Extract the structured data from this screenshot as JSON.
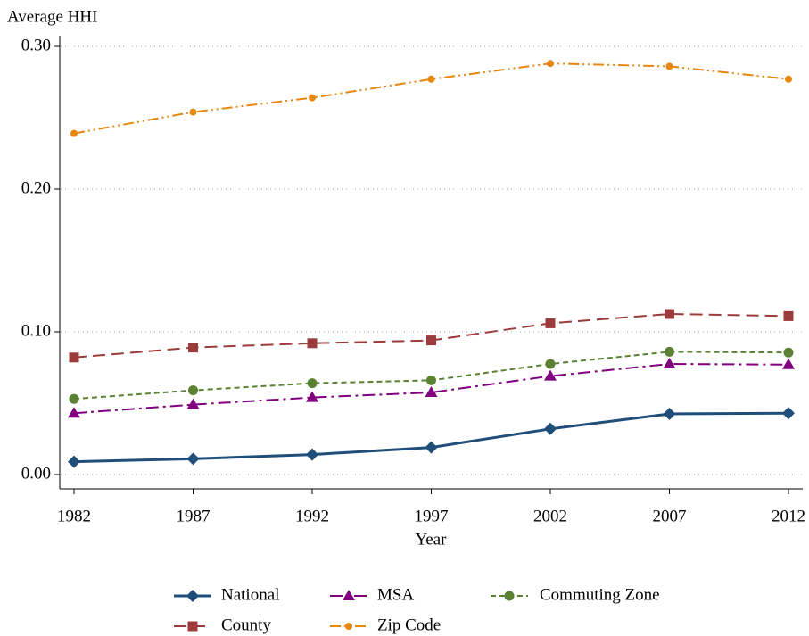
{
  "chart_data": {
    "type": "line",
    "y_label": "Average HHI",
    "x_label": "Year",
    "x": [
      1982,
      1987,
      1992,
      1997,
      2002,
      2007,
      2012
    ],
    "xlim": [
      1981.4,
      2012.6
    ],
    "xticks": [
      1982,
      1987,
      1992,
      1997,
      2002,
      2007,
      2012
    ],
    "ylim": [
      -0.01,
      0.3075
    ],
    "yticks": [
      {
        "value": 0,
        "label": "0.00"
      },
      {
        "value": 0.1,
        "label": "0.10"
      },
      {
        "value": 0.2,
        "label": "0.20"
      },
      {
        "value": 0.3,
        "label": "0.30"
      }
    ],
    "grid": true,
    "legend": "bottom",
    "series": [
      {
        "name": "National",
        "color": "#1f4e79",
        "marker": "diamond",
        "dash": "solid",
        "values": [
          0.009,
          0.011,
          0.014,
          0.019,
          0.032,
          0.0425,
          0.043
        ]
      },
      {
        "name": "MSA",
        "color": "#800080",
        "marker": "triangle",
        "dash": "longdashdot",
        "values": [
          0.043,
          0.049,
          0.054,
          0.0575,
          0.069,
          0.0775,
          0.077
        ]
      },
      {
        "name": "Commuting Zone",
        "color": "#5a8232",
        "marker": "circle",
        "dash": "shortdash",
        "values": [
          0.053,
          0.059,
          0.064,
          0.066,
          0.0775,
          0.086,
          0.0855
        ]
      },
      {
        "name": "County",
        "color": "#9c3b3b",
        "marker": "square",
        "dash": "longdash",
        "values": [
          0.082,
          0.089,
          0.092,
          0.094,
          0.106,
          0.1125,
          0.111
        ]
      },
      {
        "name": "Zip Code",
        "color": "#e8870e",
        "marker": "smallcircle",
        "dash": "dashdotdot",
        "values": [
          0.239,
          0.254,
          0.264,
          0.277,
          0.288,
          0.286,
          0.277
        ]
      }
    ]
  }
}
